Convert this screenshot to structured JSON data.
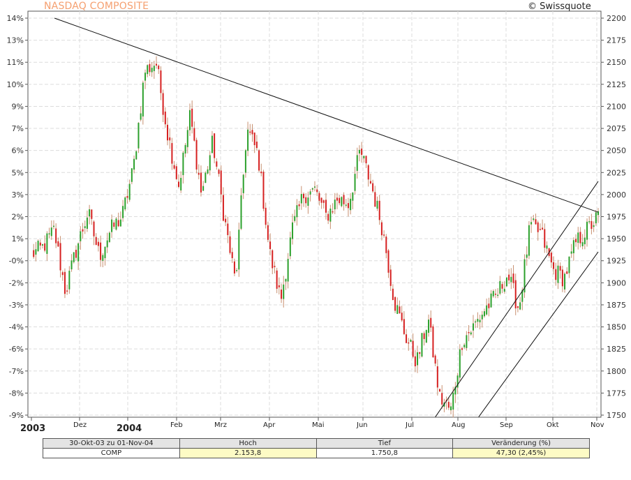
{
  "header": {
    "title": "NASDAQ COMPOSITE",
    "copyright": "© Swissquote"
  },
  "chart_data": {
    "type": "candlestick",
    "title": "NASDAQ COMPOSITE",
    "y_left_ticks": [
      "14%",
      "13%",
      "11%",
      "10%",
      "9%",
      "7%",
      "6%",
      "5%",
      "3%",
      "2%",
      "1%",
      "-0%",
      "-2%",
      "-3%",
      "-4%",
      "-6%",
      "-7%",
      "-8%",
      "-9%"
    ],
    "y_right_ticks": [
      "2200",
      "2175",
      "2150",
      "2125",
      "2100",
      "2075",
      "2050",
      "2025",
      "2000",
      "1975",
      "1950",
      "1925",
      "1900",
      "1875",
      "1850",
      "1825",
      "1800",
      "1775",
      "1750"
    ],
    "y_right_values": [
      2200,
      2175,
      2150,
      2125,
      2100,
      2075,
      2050,
      2025,
      2000,
      1975,
      1950,
      1925,
      1900,
      1875,
      1850,
      1825,
      1800,
      1775,
      1750
    ],
    "ylim": [
      1748,
      2202
    ],
    "x_labels": [
      {
        "label": "2003",
        "bold": true
      },
      {
        "label": "Dez",
        "bold": false
      },
      {
        "label": "2004",
        "bold": true
      },
      {
        "label": "Feb",
        "bold": false
      },
      {
        "label": "Mrz",
        "bold": false
      },
      {
        "label": "Apr",
        "bold": false
      },
      {
        "label": "Mai",
        "bold": false
      },
      {
        "label": "Jun",
        "bold": false
      },
      {
        "label": "Jul",
        "bold": false
      },
      {
        "label": "Aug",
        "bold": false
      },
      {
        "label": "Sep",
        "bold": false
      },
      {
        "label": "Okt",
        "bold": false
      },
      {
        "label": "Nov",
        "bold": false
      }
    ],
    "key_closes": [
      1932,
      1940,
      1960,
      1890,
      1940,
      1980,
      1930,
      1960,
      1975,
      2030,
      2140,
      2150,
      2070,
      2010,
      2090,
      2000,
      2060,
      1975,
      1900,
      2075,
      2045,
      1935,
      1880,
      1960,
      2000,
      2005,
      1975,
      1995,
      1990,
      2050,
      2010,
      1960,
      1880,
      1840,
      1810,
      1860,
      1770,
      1755,
      1835,
      1850,
      1870,
      1885,
      1910,
      1870,
      1965,
      1955,
      1915,
      1905,
      1945,
      1960,
      1975
    ],
    "trend_lines": [
      {
        "name": "resistance",
        "p1": [
          "2003-11-03",
          2200
        ],
        "p2": [
          "2004-11-01",
          1980
        ]
      },
      {
        "name": "channel-upper",
        "p1": [
          "2004-07-15",
          1748
        ],
        "p2": [
          "2004-11-01",
          2015
        ]
      },
      {
        "name": "channel-lower",
        "p1": [
          "2004-08-13",
          1748
        ],
        "p2": [
          "2004-11-01",
          1935
        ]
      }
    ],
    "colors": {
      "up": "#2ca02c",
      "down": "#d62020",
      "grid": "#dcdcdc"
    }
  },
  "stats_table": {
    "headers": [
      "30-Okt-03 zu 01-Nov-04",
      "Hoch",
      "Tief",
      "Veränderung (%)"
    ],
    "row": [
      "COMP",
      "2.153,8",
      "1.750,8",
      "47,30 (2,45%)"
    ]
  }
}
